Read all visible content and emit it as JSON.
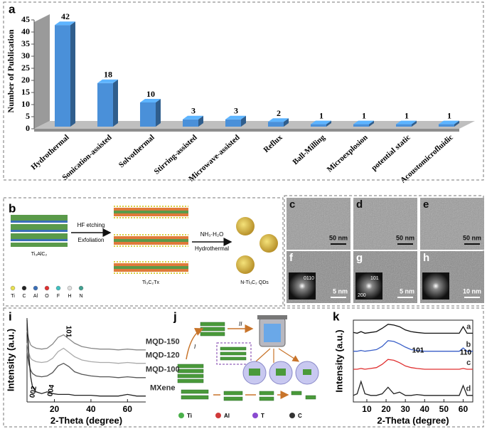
{
  "panel_labels": [
    "a",
    "b",
    "c",
    "d",
    "e",
    "f",
    "g",
    "h",
    "i",
    "j",
    "k"
  ],
  "chart_data": [
    {
      "type": "bar3d",
      "ylabel": "Number of Publication",
      "categories": [
        "Hydrothermal",
        "Sonication-assisted",
        "Solvothermal",
        "Stirring-assisted",
        "Microwave-assisted",
        "Reflux",
        "Ball-Milling",
        "Microexplosion",
        "potential static",
        "Acoustomicrofluidic"
      ],
      "values": [
        42,
        18,
        10,
        3,
        3,
        2,
        1,
        1,
        1,
        1
      ],
      "color": "#4a90d9",
      "ylim": [
        0,
        45
      ],
      "yticks": [
        0,
        5,
        10,
        15,
        20,
        25,
        30,
        35,
        40,
        45
      ]
    },
    {
      "type": "line",
      "xlabel": "2-Theta (degree)",
      "ylabel": "Intensity (a.u.)",
      "x": [
        5,
        6,
        7,
        8,
        10,
        13,
        16,
        19,
        22,
        25,
        28,
        31,
        35,
        40,
        45,
        50,
        55,
        60,
        65,
        70
      ],
      "series": [
        {
          "name": "MQD-150",
          "color": "#888888",
          "values": [
            85,
            74,
            68,
            66,
            64,
            63,
            64,
            69,
            77,
            80,
            75,
            70,
            66,
            64,
            63,
            63,
            62,
            63,
            62,
            62
          ]
        },
        {
          "name": "MQD-120",
          "color": "#aaaaaa",
          "values": [
            70,
            58,
            52,
            50,
            48,
            47,
            48,
            52,
            60,
            64,
            59,
            54,
            50,
            48,
            47,
            47,
            46,
            47,
            46,
            46
          ]
        },
        {
          "name": "MQD-100",
          "color": "#555555",
          "values": [
            60,
            45,
            38,
            34,
            31,
            30,
            31,
            35,
            43,
            46,
            42,
            36,
            33,
            31,
            30,
            30,
            29,
            30,
            29,
            29
          ]
        },
        {
          "name": "MXene",
          "color": "#222222",
          "values": [
            98,
            55,
            30,
            18,
            12,
            10,
            12,
            10,
            9,
            9,
            9,
            8,
            8,
            8,
            7,
            7,
            7,
            9,
            7,
            7
          ]
        }
      ],
      "xlim": [
        5,
        70
      ],
      "xticks": [
        20,
        40,
        60
      ],
      "ylim": [
        0,
        100
      ],
      "annotations": [
        "002",
        "004",
        "101"
      ]
    },
    {
      "type": "line",
      "xlabel": "2-Theta (degree)",
      "ylabel": "Intensity (a.u.)",
      "x": [
        3,
        5,
        7,
        9,
        12,
        15,
        18,
        21,
        24,
        27,
        30,
        33,
        36,
        40,
        45,
        50,
        55,
        58,
        60,
        62,
        65
      ],
      "series": [
        {
          "name": "a",
          "color": "#111111",
          "values": [
            85,
            84,
            86,
            84,
            85,
            86,
            90,
            95,
            94,
            92,
            88,
            86,
            85,
            84,
            84,
            84,
            84,
            84,
            92,
            84,
            84
          ]
        },
        {
          "name": "b",
          "color": "#3a5fc8",
          "values": [
            62,
            62,
            63,
            62,
            63,
            64,
            68,
            75,
            74,
            71,
            67,
            64,
            63,
            62,
            62,
            62,
            62,
            62,
            66,
            62,
            62
          ]
        },
        {
          "name": "c",
          "color": "#e03030",
          "values": [
            40,
            40,
            41,
            40,
            41,
            42,
            46,
            52,
            51,
            48,
            44,
            42,
            41,
            40,
            40,
            40,
            40,
            40,
            41,
            40,
            40
          ]
        },
        {
          "name": "d",
          "color": "#222222",
          "values": [
            8,
            10,
            25,
            10,
            8,
            8,
            10,
            18,
            10,
            12,
            8,
            8,
            9,
            8,
            8,
            8,
            8,
            8,
            20,
            8,
            8
          ]
        }
      ],
      "xlim": [
        3,
        65
      ],
      "xticks": [
        10,
        20,
        30,
        40,
        50,
        60
      ],
      "ylim": [
        0,
        100
      ],
      "annotations": [
        "101",
        "110"
      ]
    }
  ],
  "schematic_b": {
    "step1_top": "HF etching",
    "step1_bottom": "Exfoliation",
    "step2_top": "NH₃·H₂O",
    "step2_bottom": "Hydrothermal",
    "start": "Ti₃AlC₂",
    "middle": "Ti₃C₂Tx",
    "end": "N-Ti₃C₂ QDs",
    "legend": [
      "Ti",
      "C",
      "Al",
      "O",
      "F",
      "H",
      "N"
    ]
  },
  "micrographs": [
    {
      "scale": "50 nm"
    },
    {
      "scale": "50 nm"
    },
    {
      "scale": "50 nm"
    },
    {
      "scale": "5 nm",
      "fft": "0110"
    },
    {
      "scale": "5 nm",
      "fft": "101",
      "fft2": "200"
    },
    {
      "scale": "10 nm"
    }
  ],
  "schematic_j": {
    "step1": "I",
    "step2": "II",
    "legend": [
      "Ti",
      "Al",
      "T",
      "C"
    ]
  }
}
